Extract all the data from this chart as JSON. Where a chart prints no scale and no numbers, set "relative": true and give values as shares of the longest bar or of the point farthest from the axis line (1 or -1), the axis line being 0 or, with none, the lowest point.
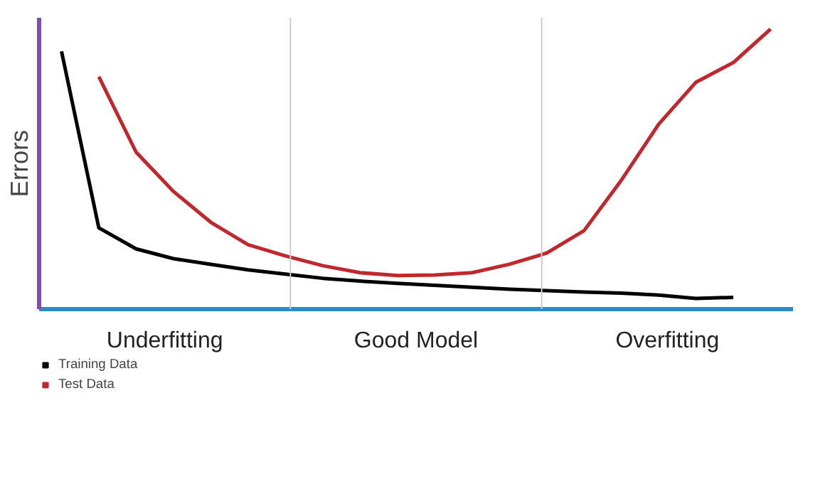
{
  "chart_data": {
    "type": "line",
    "relative": true,
    "ylabel": "Errors",
    "legend": "bottom left",
    "categories": [
      null,
      null,
      null,
      null,
      null,
      null,
      null,
      null,
      null,
      null,
      null,
      null,
      null,
      null,
      null,
      null,
      null,
      null,
      null,
      null
    ],
    "series": [
      {
        "name": "Training Data",
        "color": "#000000",
        "values": [
          0.92,
          0.29,
          0.215,
          0.18,
          0.16,
          0.14,
          0.125,
          0.11,
          0.1,
          0.092,
          0.085,
          0.078,
          0.071,
          0.066,
          0.061,
          0.057,
          0.05,
          0.038,
          0.042,
          null
        ]
      },
      {
        "name": "Test Data",
        "color": "#c0282d",
        "values": [
          null,
          0.83,
          0.56,
          0.42,
          0.31,
          0.23,
          0.19,
          0.155,
          0.13,
          0.12,
          0.122,
          0.13,
          0.16,
          0.2,
          0.28,
          0.46,
          0.66,
          0.81,
          0.88,
          1.0
        ]
      }
    ],
    "annotations": [
      "Underfitting",
      "Good Model",
      "Overfitting"
    ]
  }
}
